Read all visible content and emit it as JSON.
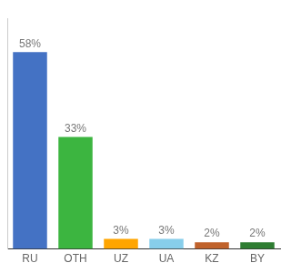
{
  "chart_data": {
    "type": "bar",
    "categories": [
      "RU",
      "OTH",
      "UZ",
      "UA",
      "KZ",
      "BY"
    ],
    "values": [
      58,
      33,
      3,
      3,
      2,
      2
    ],
    "value_labels": [
      "58%",
      "33%",
      "3%",
      "3%",
      "2%",
      "2%"
    ],
    "colors": [
      "#4472C4",
      "#3CB540",
      "#FFA500",
      "#87CEEB",
      "#C0622B",
      "#2E7D32"
    ],
    "ylim": [
      0,
      68
    ],
    "data_labels": true,
    "tick_labels": "x",
    "grid": false
  }
}
